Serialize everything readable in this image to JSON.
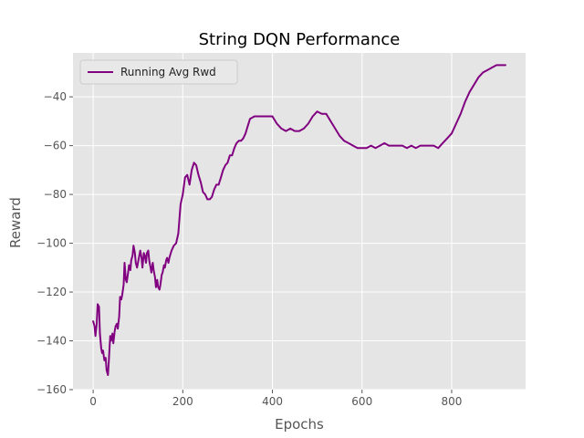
{
  "chart_data": {
    "type": "line",
    "title": "String DQN Performance",
    "xlabel": "Epochs",
    "ylabel": "Reward",
    "xlim": [
      -45,
      965
    ],
    "ylim": [
      -160,
      -22
    ],
    "xticks": [
      0,
      200,
      400,
      600,
      800
    ],
    "xtick_labels": [
      "0",
      "200",
      "400",
      "600",
      "800"
    ],
    "yticks": [
      -160,
      -140,
      -120,
      -100,
      -80,
      -60,
      -40
    ],
    "ytick_labels": [
      "−160",
      "−140",
      "−120",
      "−100",
      "−80",
      "−60",
      "−40"
    ],
    "grid": true,
    "legend": "top-left",
    "background": "#e5e5e5",
    "grid_color": "#ffffff",
    "series": [
      {
        "name": "Running Avg Rwd",
        "color": "#800080",
        "x": [
          0,
          3,
          5,
          8,
          10,
          13,
          15,
          18,
          20,
          22,
          25,
          28,
          30,
          33,
          35,
          38,
          40,
          43,
          45,
          48,
          50,
          53,
          55,
          58,
          60,
          63,
          65,
          68,
          70,
          73,
          75,
          78,
          80,
          83,
          85,
          88,
          90,
          93,
          95,
          98,
          100,
          103,
          105,
          108,
          110,
          113,
          115,
          118,
          120,
          123,
          125,
          128,
          130,
          133,
          135,
          138,
          140,
          143,
          145,
          148,
          150,
          153,
          155,
          158,
          160,
          163,
          165,
          168,
          170,
          175,
          180,
          185,
          190,
          195,
          200,
          205,
          210,
          215,
          220,
          225,
          230,
          235,
          240,
          245,
          250,
          255,
          260,
          265,
          270,
          275,
          280,
          285,
          290,
          295,
          300,
          305,
          310,
          315,
          320,
          325,
          330,
          335,
          340,
          345,
          350,
          360,
          370,
          380,
          390,
          400,
          410,
          420,
          430,
          440,
          450,
          460,
          470,
          480,
          490,
          500,
          510,
          520,
          530,
          540,
          550,
          560,
          570,
          580,
          590,
          600,
          610,
          620,
          630,
          640,
          650,
          660,
          670,
          680,
          690,
          700,
          710,
          720,
          730,
          740,
          750,
          760,
          770,
          780,
          790,
          800,
          810,
          820,
          830,
          840,
          850,
          860,
          870,
          880,
          890,
          900,
          910,
          920
        ],
        "y": [
          -132,
          -134,
          -138,
          -133,
          -125,
          -126,
          -137,
          -143,
          -145,
          -144,
          -148,
          -147,
          -152,
          -154,
          -148,
          -138,
          -140,
          -137,
          -141,
          -136,
          -134,
          -133,
          -135,
          -130,
          -122,
          -123,
          -121,
          -117,
          -108,
          -115,
          -116,
          -112,
          -109,
          -111,
          -107,
          -105,
          -101,
          -104,
          -108,
          -110,
          -108,
          -105,
          -103,
          -106,
          -110,
          -104,
          -105,
          -108,
          -104,
          -103,
          -107,
          -110,
          -112,
          -108,
          -111,
          -114,
          -118,
          -115,
          -118,
          -119,
          -117,
          -113,
          -112,
          -109,
          -110,
          -107,
          -106,
          -108,
          -106,
          -103,
          -101,
          -100,
          -96,
          -84,
          -80,
          -73,
          -72,
          -76,
          -70,
          -67,
          -68,
          -72,
          -75,
          -79,
          -80,
          -82,
          -82,
          -81,
          -78,
          -76,
          -76,
          -73,
          -70,
          -68,
          -67,
          -64,
          -64,
          -61,
          -59,
          -58,
          -58,
          -57,
          -55,
          -52,
          -49,
          -48,
          -48,
          -48,
          -48,
          -48,
          -51,
          -53,
          -54,
          -53,
          -54,
          -54,
          -53,
          -51,
          -48,
          -46,
          -47,
          -47,
          -50,
          -53,
          -56,
          -58,
          -59,
          -60,
          -61,
          -61,
          -61,
          -60,
          -61,
          -60,
          -59,
          -60,
          -60,
          -60,
          -60,
          -61,
          -60,
          -61,
          -60,
          -60,
          -60,
          -60,
          -61,
          -59,
          -57,
          -55,
          -51,
          -47,
          -42,
          -38,
          -35,
          -32,
          -30,
          -29,
          -28,
          -27,
          -27,
          -27
        ]
      }
    ]
  }
}
